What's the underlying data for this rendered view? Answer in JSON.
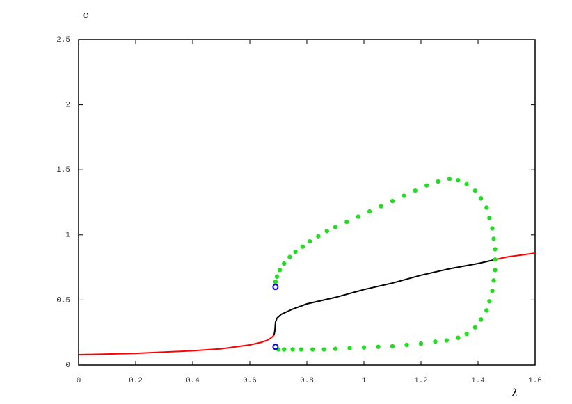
{
  "chart_data": {
    "type": "line",
    "y_label": "c",
    "x_label": "λ",
    "xlim": [
      0,
      1.6
    ],
    "ylim": [
      0,
      2.5
    ],
    "xticks": [
      0,
      0.2,
      0.4,
      0.6,
      0.8,
      1,
      1.2,
      1.4,
      1.6
    ],
    "yticks": [
      0,
      0.5,
      1,
      1.5,
      2,
      2.5
    ],
    "series": [
      {
        "color": "#ff0000",
        "marker": "none",
        "x": [
          0,
          0.1,
          0.2,
          0.3,
          0.4,
          0.5,
          0.55,
          0.6,
          0.64,
          0.66,
          0.675,
          0.685
        ],
        "values": [
          0.08,
          0.085,
          0.09,
          0.1,
          0.11,
          0.125,
          0.14,
          0.155,
          0.175,
          0.19,
          0.21,
          0.23
        ]
      },
      {
        "color": "#000000",
        "marker": "none",
        "x": [
          0.685,
          0.688,
          0.69,
          0.695,
          0.71,
          0.75,
          0.8,
          0.9,
          1.0,
          1.1,
          1.2,
          1.3,
          1.4,
          1.46
        ],
        "values": [
          0.23,
          0.27,
          0.33,
          0.36,
          0.39,
          0.43,
          0.47,
          0.52,
          0.58,
          0.63,
          0.69,
          0.74,
          0.78,
          0.81
        ]
      },
      {
        "color": "#ff0000",
        "marker": "none",
        "x": [
          1.46,
          1.5,
          1.6
        ],
        "values": [
          0.81,
          0.83,
          0.86
        ]
      },
      {
        "color": "#22dd22",
        "marker": "dot",
        "x": [
          0.69,
          0.695,
          0.705,
          0.72,
          0.74,
          0.76,
          0.785,
          0.81,
          0.84,
          0.87,
          0.9,
          0.94,
          0.98,
          1.02,
          1.06,
          1.1,
          1.14,
          1.18,
          1.22,
          1.26,
          1.3,
          1.33,
          1.36,
          1.39,
          1.41,
          1.43,
          1.44,
          1.45,
          1.455,
          1.46,
          1.46,
          1.46,
          1.455,
          1.45,
          1.44,
          1.43,
          1.41,
          1.39,
          1.36,
          1.33,
          1.29,
          1.25,
          1.2,
          1.15,
          1.1,
          1.05,
          1.0,
          0.95,
          0.9,
          0.86,
          0.82,
          0.78,
          0.75,
          0.72,
          0.7
        ],
        "values": [
          0.64,
          0.68,
          0.73,
          0.78,
          0.83,
          0.87,
          0.91,
          0.95,
          0.99,
          1.03,
          1.06,
          1.1,
          1.14,
          1.18,
          1.22,
          1.26,
          1.3,
          1.34,
          1.38,
          1.41,
          1.43,
          1.42,
          1.39,
          1.34,
          1.28,
          1.21,
          1.13,
          1.05,
          0.97,
          0.89,
          0.81,
          0.73,
          0.65,
          0.57,
          0.49,
          0.42,
          0.35,
          0.29,
          0.24,
          0.21,
          0.19,
          0.18,
          0.165,
          0.155,
          0.145,
          0.14,
          0.135,
          0.13,
          0.125,
          0.12,
          0.12,
          0.12,
          0.12,
          0.12,
          0.12
        ]
      },
      {
        "color": "#0000ff",
        "marker": "circle",
        "x": [
          0.69,
          0.69
        ],
        "values": [
          0.6,
          0.14
        ]
      }
    ]
  }
}
